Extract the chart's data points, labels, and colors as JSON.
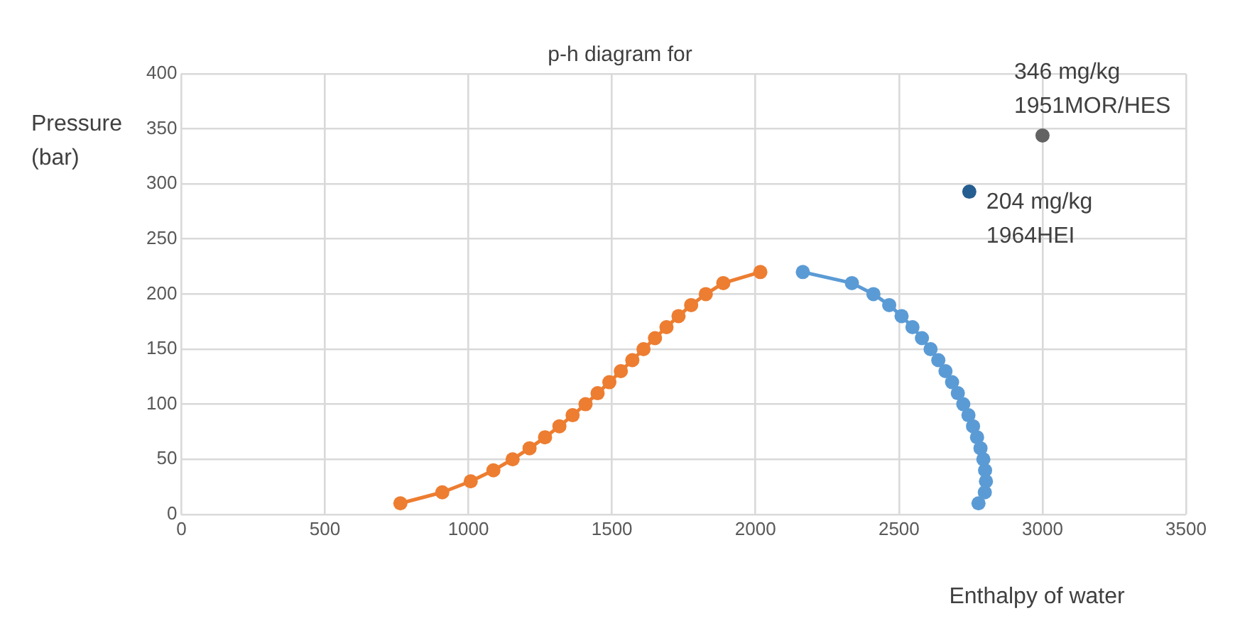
{
  "chart_data": {
    "type": "line",
    "title": "p-h diagram for",
    "xlabel": "Enthalpy of water",
    "ylabel": "Pressure (bar)",
    "xlim": [
      0,
      3500
    ],
    "xticks": [
      0,
      500,
      1000,
      1500,
      2000,
      2500,
      3000,
      3500
    ],
    "ylim": [
      0,
      400
    ],
    "yticks": [
      0,
      50,
      100,
      150,
      200,
      250,
      300,
      350,
      400
    ],
    "grid": true,
    "legend": false,
    "marker": "circle",
    "line_style": "solid",
    "series": [
      {
        "type": "line",
        "color": "#ed7d31",
        "x": [
          763,
          909,
          1008,
          1087,
          1154,
          1213,
          1267,
          1317,
          1363,
          1408,
          1450,
          1491,
          1531,
          1571,
          1610,
          1650,
          1690,
          1732,
          1776,
          1827,
          1888,
          2017
        ],
        "values": [
          10,
          20,
          30,
          40,
          50,
          60,
          70,
          80,
          90,
          100,
          110,
          120,
          130,
          140,
          150,
          160,
          170,
          180,
          190,
          200,
          210,
          220
        ]
      },
      {
        "type": "line",
        "color": "#5b9bd5",
        "x": [
          2777,
          2799,
          2803,
          2800,
          2794,
          2784,
          2772,
          2758,
          2742,
          2724,
          2705,
          2685,
          2662,
          2637,
          2610,
          2580,
          2547,
          2509,
          2466,
          2411,
          2336,
          2165
        ],
        "values": [
          10,
          20,
          30,
          40,
          50,
          60,
          70,
          80,
          90,
          100,
          110,
          120,
          130,
          140,
          150,
          160,
          170,
          180,
          190,
          200,
          210,
          220
        ]
      },
      {
        "type": "scatter",
        "color": "#255e91",
        "x": [
          2745
        ],
        "values": [
          293
        ]
      },
      {
        "type": "scatter",
        "color": "#636363",
        "x": [
          3000
        ],
        "values": [
          344
        ]
      }
    ],
    "annotations": [
      {
        "text": "204 mg/kg\n1964HEI",
        "x": 2745,
        "y": 293
      },
      {
        "text": "346 mg/kg\n1951MOR/HES",
        "x": 3000,
        "y": 344
      }
    ]
  }
}
